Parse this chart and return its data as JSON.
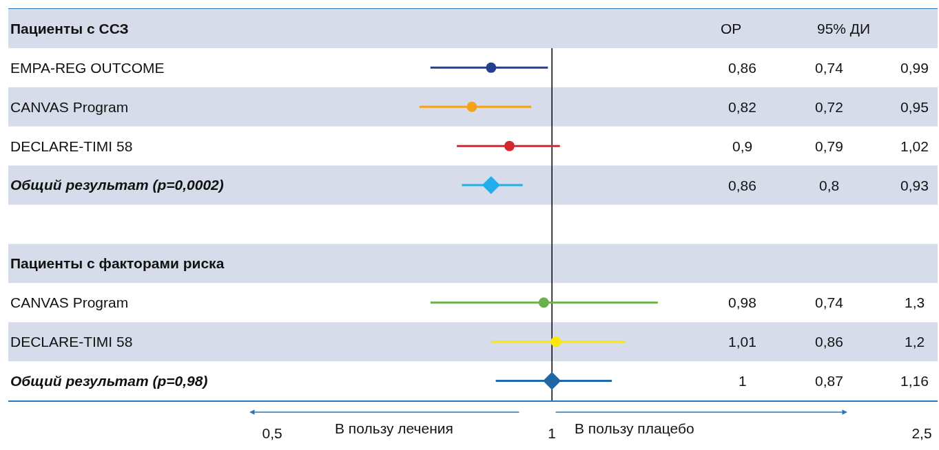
{
  "chart_data": {
    "type": "scatter",
    "orientation": "horizontal",
    "categories": [
      "Пациенты с ССЗ",
      "EMPA-REG OUTCOME",
      "CANVAS Program",
      "DECLARE-TIMI 58",
      "Общий результат (p=0,0002)",
      null,
      "Пациенты с факторами риска",
      "CANVAS Program",
      "DECLARE-TIMI 58",
      "Общий результат (p=0,98)"
    ],
    "series": [
      {
        "marker": "circle",
        "values": [
          null,
          0.86,
          0.82,
          0.9,
          null,
          null,
          null,
          0.98,
          1.01,
          null
        ],
        "colors": [
          null,
          "#253f8e",
          "#f5a31b",
          "#d7262e",
          null,
          null,
          null,
          "#6ab04c",
          "#ffe800",
          null
        ],
        "errors": [
          null,
          [
            0.74,
            0.99
          ],
          [
            0.72,
            0.95
          ],
          [
            0.79,
            1.02
          ],
          null,
          null,
          null,
          [
            0.74,
            1.3
          ],
          [
            0.86,
            1.2
          ],
          null
        ]
      },
      {
        "marker": "diamond",
        "values": [
          null,
          null,
          null,
          null,
          0.86,
          null,
          null,
          null,
          null,
          1
        ],
        "colors": [
          null,
          null,
          null,
          null,
          "#1fb0ec",
          null,
          null,
          null,
          null,
          "#1f67a6"
        ],
        "errors": [
          null,
          null,
          null,
          null,
          [
            0.8,
            0.93
          ],
          null,
          null,
          null,
          null,
          [
            0.87,
            1.16
          ]
        ]
      }
    ],
    "xlim": [
      0.26,
      2.6
    ],
    "xticks": [
      {
        "value": 0.5,
        "label": "0,5"
      },
      1,
      {
        "value": 2.5,
        "label": "2,5"
      }
    ],
    "log": "x",
    "ref_lines": [
      {
        "axis": "x",
        "value": 1,
        "color": "#000000"
      }
    ],
    "grid": false,
    "annotations": [
      "ОР",
      "95% ДИ",
      "В пользу лечения",
      "В пользу плацебо",
      "0,86",
      "0,74",
      "0,99",
      "0,82",
      "0,72",
      "0,95",
      "0,9",
      "0,79",
      "1,02",
      "0,86",
      "0,8",
      "0,93",
      "0,98",
      "0,74",
      "1,3",
      "1,01",
      "0,86",
      "1,2",
      "1",
      "0,87",
      "1,16"
    ]
  }
}
